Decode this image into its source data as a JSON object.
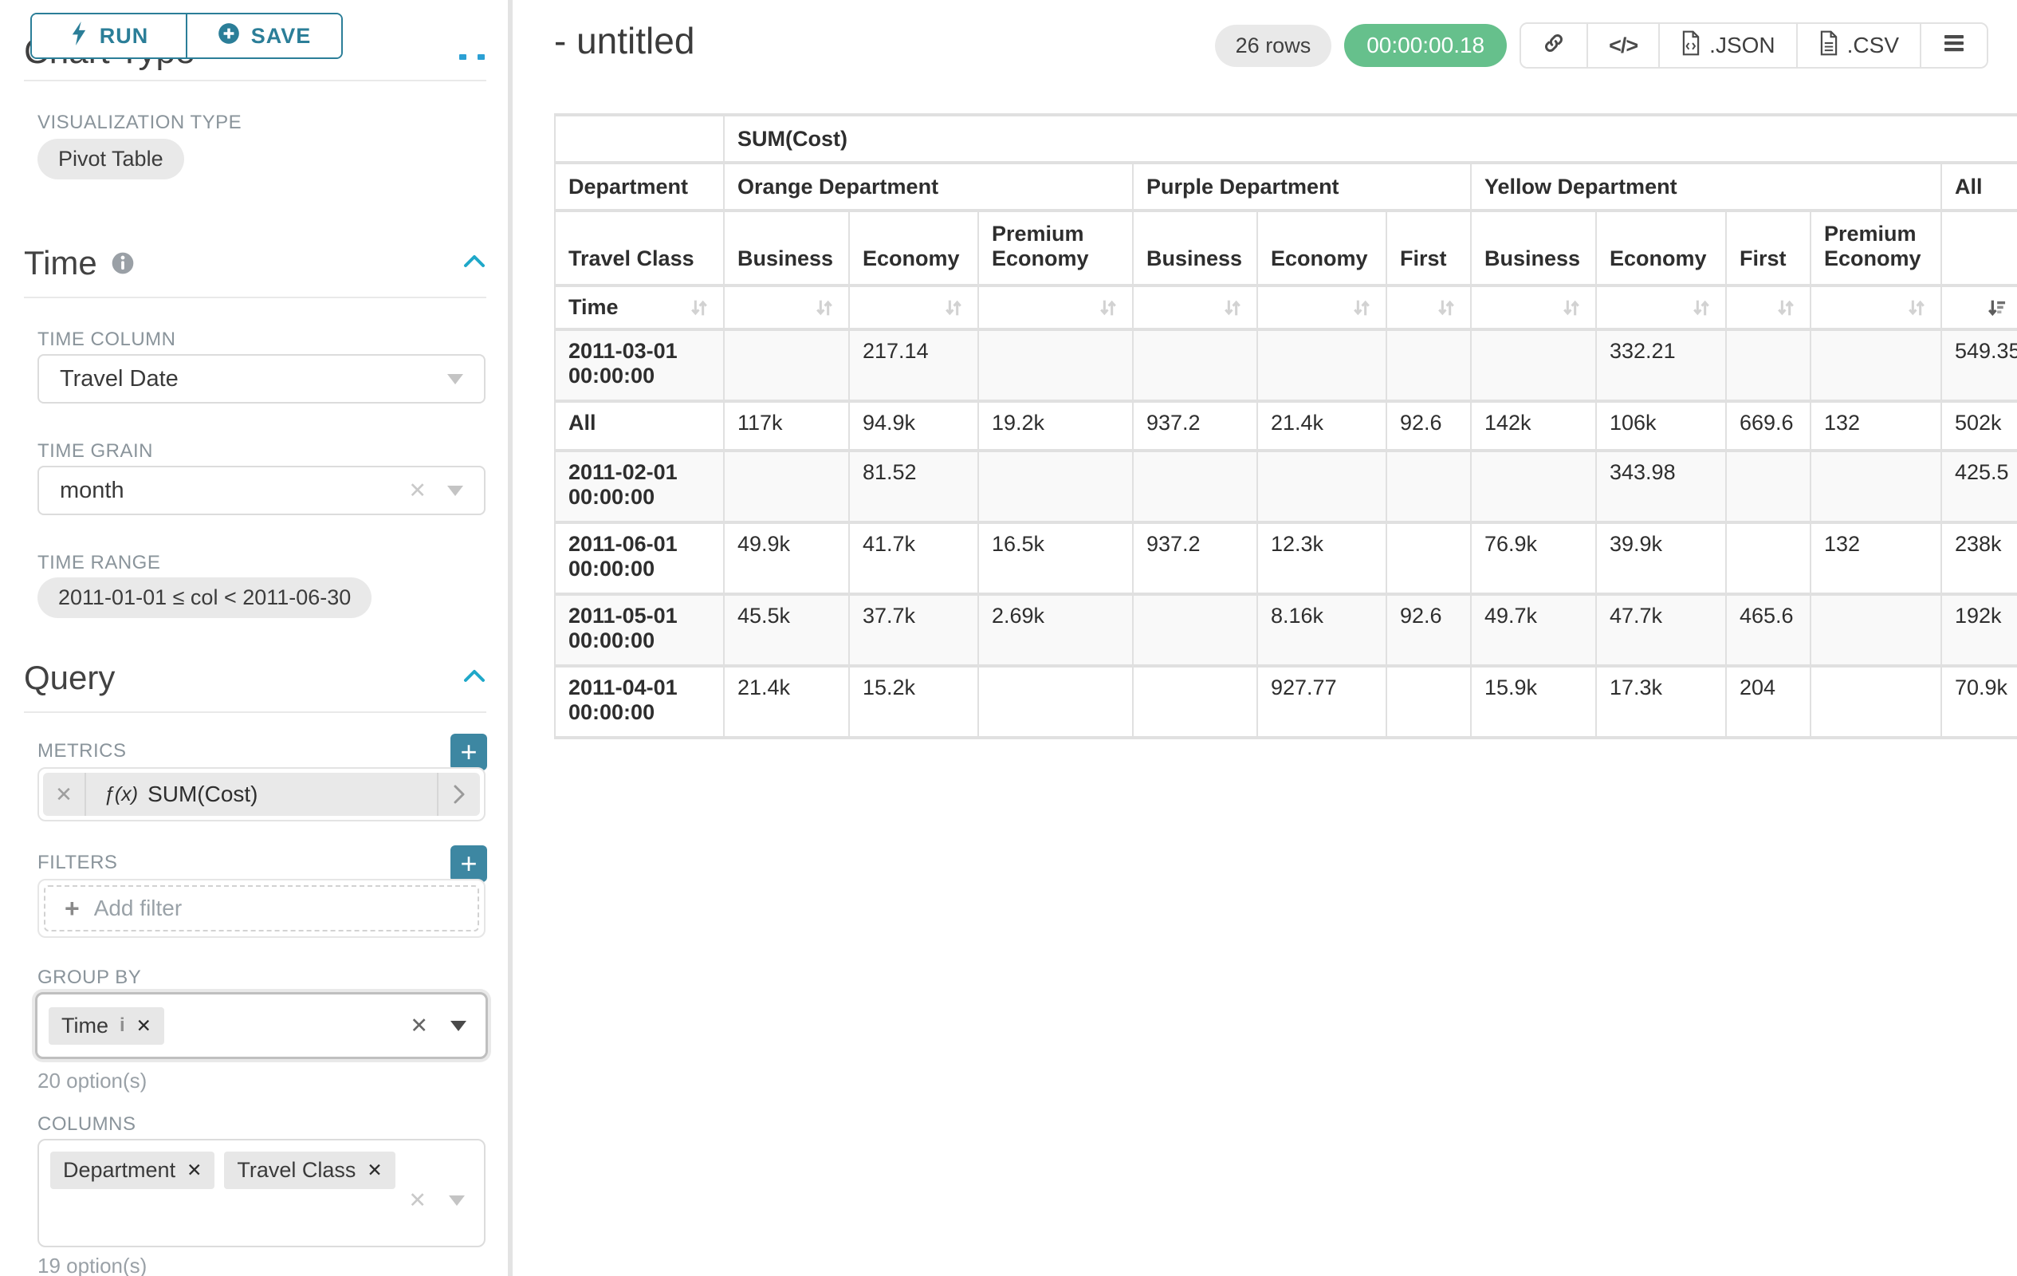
{
  "colors": {
    "accent": "#2b7e98",
    "plus_button": "#3d87a2",
    "timer_green": "#66c08c",
    "chevron": "#1fa8c9"
  },
  "sidebar": {
    "run_label": "RUN",
    "save_label": "SAVE",
    "chart_type_heading": "Chart Type",
    "visualization_type_label": "VISUALIZATION TYPE",
    "visualization_type_value": "Pivot Table",
    "time": {
      "title": "Time",
      "time_column_label": "TIME COLUMN",
      "time_column_value": "Travel Date",
      "time_grain_label": "TIME GRAIN",
      "time_grain_value": "month",
      "time_range_label": "TIME RANGE",
      "time_range_value": "2011-01-01 ≤ col < 2011-06-30"
    },
    "query": {
      "title": "Query",
      "metrics_label": "METRICS",
      "metric_fx": "ƒ(x)",
      "metric_value": "SUM(Cost)",
      "filters_label": "FILTERS",
      "add_filter_label": "Add filter",
      "group_by_label": "GROUP BY",
      "group_by_tag": "Time",
      "group_by_options": "20 option(s)",
      "columns_label": "COLUMNS",
      "columns_tags": [
        "Department",
        "Travel Class"
      ],
      "columns_options": "19 option(s)"
    }
  },
  "main": {
    "title": "- untitled",
    "rows_badge": "26 rows",
    "timer": "00:00:00.18",
    "json_button": ".JSON",
    "csv_button": ".CSV"
  },
  "chart_data": {
    "type": "table",
    "metric_header": "SUM(Cost)",
    "row_dim_label": "Department",
    "row_subdim_label": "Travel Class",
    "row_axis_label": "Time",
    "col_groups": [
      {
        "label": "Orange Department",
        "children": [
          "Business",
          "Economy",
          "Premium Economy"
        ]
      },
      {
        "label": "Purple Department",
        "children": [
          "Business",
          "Economy",
          "First"
        ]
      },
      {
        "label": "Yellow Department",
        "children": [
          "Business",
          "Economy",
          "First",
          "Premium Economy"
        ]
      },
      {
        "label": "All",
        "children": [
          ""
        ]
      }
    ],
    "rows": [
      {
        "label": "2011-03-01 00:00:00",
        "values": [
          "",
          "217.14",
          "",
          "",
          "",
          "",
          "",
          "332.21",
          "",
          "",
          "549.35"
        ]
      },
      {
        "label": "All",
        "values": [
          "117k",
          "94.9k",
          "19.2k",
          "937.2",
          "21.4k",
          "92.6",
          "142k",
          "106k",
          "669.6",
          "132",
          "502k"
        ]
      },
      {
        "label": "2011-02-01 00:00:00",
        "values": [
          "",
          "81.52",
          "",
          "",
          "",
          "",
          "",
          "343.98",
          "",
          "",
          "425.5"
        ]
      },
      {
        "label": "2011-06-01 00:00:00",
        "values": [
          "49.9k",
          "41.7k",
          "16.5k",
          "937.2",
          "12.3k",
          "",
          "76.9k",
          "39.9k",
          "",
          "132",
          "238k"
        ]
      },
      {
        "label": "2011-05-01 00:00:00",
        "values": [
          "45.5k",
          "37.7k",
          "2.69k",
          "",
          "8.16k",
          "92.6",
          "49.7k",
          "47.7k",
          "465.6",
          "",
          "192k"
        ]
      },
      {
        "label": "2011-04-01 00:00:00",
        "values": [
          "21.4k",
          "15.2k",
          "",
          "",
          "927.77",
          "",
          "15.9k",
          "17.3k",
          "204",
          "",
          "70.9k"
        ]
      }
    ]
  }
}
